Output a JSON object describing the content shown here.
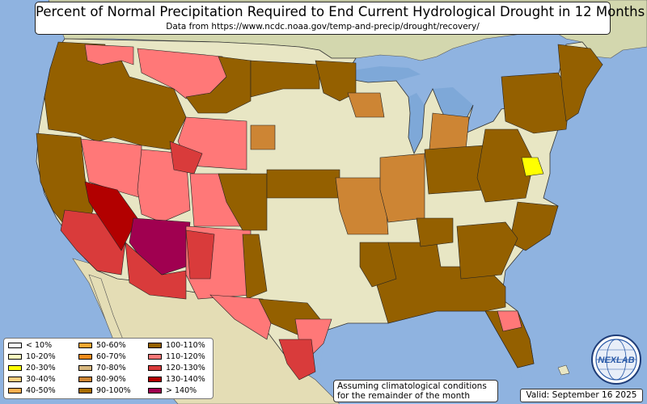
{
  "title": "Percent of Normal Precipitation Required to End Current Hydrological Drought in 12 Months",
  "subtitle": "Data from https://www.ncdc.noaa.gov/temp-and-precip/drought/recovery/",
  "note": {
    "line1": "Assuming climatological conditions",
    "line2": "for the remainder of the month"
  },
  "valid": "Valid: September 16 2025",
  "logo": {
    "text": "NEXLAB",
    "icon": "nexlab-globe-logo-icon"
  },
  "colors": {
    "ocean": "#8fb3e0",
    "land_base": "#e8e6c4",
    "canada_land": "#d8dab4",
    "mexico_land": "#e6dfb8"
  },
  "legend": [
    {
      "label": "< 10%",
      "color": "#ffffff"
    },
    {
      "label": "10-20%",
      "color": "#ffffc0"
    },
    {
      "label": "20-30%",
      "color": "#ffff00"
    },
    {
      "label": "30-40%",
      "color": "#ffd080"
    },
    {
      "label": "40-50%",
      "color": "#ffb050"
    },
    {
      "label": "50-60%",
      "color": "#f5a630"
    },
    {
      "label": "60-70%",
      "color": "#f08c1c"
    },
    {
      "label": "70-80%",
      "color": "#d8b880"
    },
    {
      "label": "80-90%",
      "color": "#cd8534"
    },
    {
      "label": "90-100%",
      "color": "#a86c00"
    },
    {
      "label": "100-110%",
      "color": "#946000"
    },
    {
      "label": "110-120%",
      "color": "#ff7878"
    },
    {
      "label": "120-130%",
      "color": "#d93b3b"
    },
    {
      "label": "130-140%",
      "color": "#b20000"
    },
    {
      "label": "> 140%",
      "color": "#a00050"
    }
  ]
}
